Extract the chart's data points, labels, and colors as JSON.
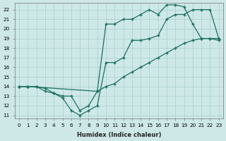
{
  "xlabel": "Humidex (Indice chaleur)",
  "bg_color": "#cee8e8",
  "grid_color": "#aacece",
  "line_color": "#1a7060",
  "xlim": [
    -0.5,
    23.5
  ],
  "ylim": [
    10.7,
    22.7
  ],
  "yticks": [
    11,
    12,
    13,
    14,
    15,
    16,
    17,
    18,
    19,
    20,
    21,
    22
  ],
  "xticks": [
    0,
    1,
    2,
    3,
    4,
    5,
    6,
    7,
    8,
    9,
    10,
    11,
    12,
    13,
    14,
    15,
    16,
    17,
    18,
    19,
    20,
    21,
    22,
    23
  ],
  "line1_x": [
    0,
    1,
    2,
    3,
    4,
    5,
    6,
    7,
    8,
    9,
    10,
    11,
    12,
    13,
    14,
    15,
    16,
    17,
    18,
    19,
    20,
    21,
    22,
    23
  ],
  "line1_y": [
    14.0,
    14.0,
    14.0,
    13.8,
    13.3,
    13.0,
    13.0,
    11.5,
    12.0,
    13.5,
    14.0,
    14.3,
    15.0,
    15.5,
    16.0,
    16.5,
    17.0,
    17.5,
    18.0,
    18.5,
    18.8,
    19.0,
    19.0,
    19.0
  ],
  "line2_x": [
    0,
    1,
    2,
    3,
    4,
    5,
    6,
    7,
    8,
    9,
    10,
    11,
    12,
    13,
    14,
    15,
    16,
    17,
    18,
    19,
    20,
    21,
    22,
    23
  ],
  "line2_y": [
    14.0,
    14.0,
    14.0,
    13.5,
    13.3,
    12.8,
    11.5,
    11.0,
    11.5,
    12.0,
    16.5,
    16.5,
    17.0,
    18.8,
    18.8,
    19.0,
    19.3,
    21.0,
    21.5,
    21.5,
    22.0,
    22.0,
    22.0,
    19.0
  ],
  "line3_x": [
    0,
    1,
    9,
    10,
    11,
    12,
    13,
    14,
    15,
    16,
    17,
    18,
    19,
    20,
    21,
    22,
    23
  ],
  "line3_y": [
    14.0,
    14.0,
    13.5,
    20.5,
    20.5,
    21.0,
    21.0,
    21.5,
    22.0,
    21.5,
    22.5,
    22.5,
    22.3,
    20.5,
    19.0,
    19.0,
    18.8
  ]
}
